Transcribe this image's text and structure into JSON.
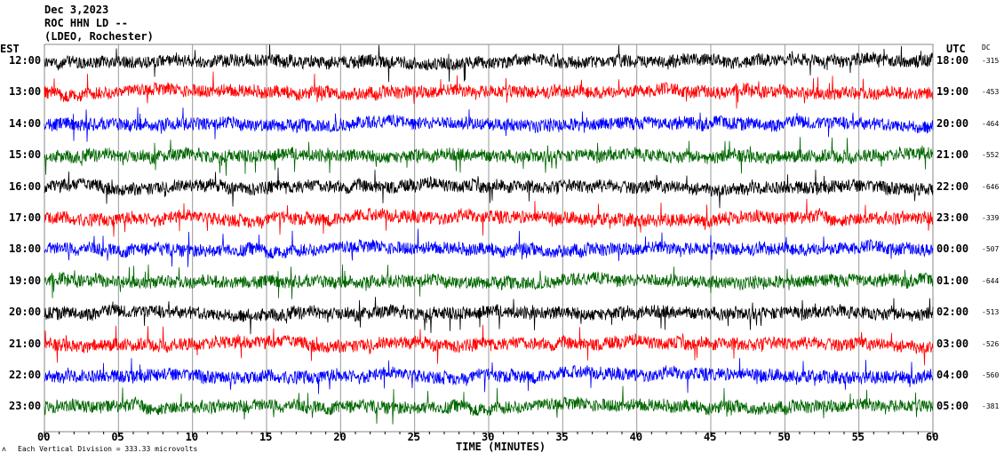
{
  "header": {
    "date": "Dec 3,2023",
    "station": "ROC HHN LD --",
    "network": "(LDEO, Rochester)"
  },
  "chart_data": {
    "type": "line",
    "title": "Dec 3,2023 ROC HHN LD -- (LDEO, Rochester)",
    "xlabel": "TIME (MINUTES)",
    "xlim": [
      0,
      60
    ],
    "x_ticks": [
      "00",
      "05",
      "10",
      "15",
      "20",
      "25",
      "30",
      "35",
      "40",
      "45",
      "50",
      "55",
      "60"
    ],
    "left_axis_label": "EST",
    "right_axis_label": "UTC",
    "dc_label": "DC",
    "scale_note": "Each Vertical Division =  333.33 microvolts",
    "scale_icon": "seismometer-icon",
    "colors": [
      "#000000",
      "#ff0000",
      "#0000ff",
      "#006600"
    ],
    "rows": [
      {
        "est": "12:00",
        "utc": "18:00",
        "dc": "-315"
      },
      {
        "est": "13:00",
        "utc": "19:00",
        "dc": "-453"
      },
      {
        "est": "14:00",
        "utc": "20:00",
        "dc": "-464"
      },
      {
        "est": "15:00",
        "utc": "21:00",
        "dc": "-552"
      },
      {
        "est": "16:00",
        "utc": "22:00",
        "dc": "-646"
      },
      {
        "est": "17:00",
        "utc": "23:00",
        "dc": "-339"
      },
      {
        "est": "18:00",
        "utc": "00:00",
        "dc": "-507"
      },
      {
        "est": "19:00",
        "utc": "01:00",
        "dc": "-644"
      },
      {
        "est": "20:00",
        "utc": "02:00",
        "dc": "-513"
      },
      {
        "est": "21:00",
        "utc": "03:00",
        "dc": "-526"
      },
      {
        "est": "22:00",
        "utc": "04:00",
        "dc": "-560"
      },
      {
        "est": "23:00",
        "utc": "05:00",
        "dc": "-381"
      }
    ]
  }
}
